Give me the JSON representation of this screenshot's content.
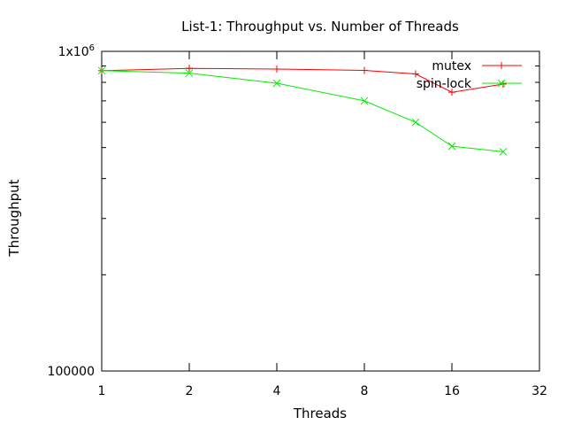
{
  "chart_data": {
    "type": "line",
    "title": "List-1: Throughput vs. Number of Threads",
    "xlabel": "Threads",
    "ylabel": "Throughput",
    "x_scale": "log2",
    "y_scale": "log10",
    "xlim": [
      1,
      32
    ],
    "ylim": [
      100000,
      1000000
    ],
    "x_ticks": [
      1,
      2,
      4,
      8,
      16,
      32
    ],
    "x_tick_labels": [
      "1",
      "2",
      "4",
      "8",
      "16",
      "32"
    ],
    "y_tick_labels": [
      "100000",
      "1x10^6"
    ],
    "legend_placement": "top-right",
    "grid": false,
    "series": [
      {
        "name": "mutex",
        "color": "#ff0000",
        "marker": "plus",
        "x": [
          1,
          2,
          4,
          8,
          12,
          16,
          24
        ],
        "y": [
          870000,
          885000,
          880000,
          872000,
          850000,
          745000,
          790000
        ]
      },
      {
        "name": "spin-lock",
        "color": "#00ee00",
        "marker": "cross",
        "x": [
          1,
          2,
          4,
          8,
          12,
          16,
          24
        ],
        "y": [
          870000,
          855000,
          795000,
          700000,
          600000,
          505000,
          485000
        ]
      }
    ]
  }
}
